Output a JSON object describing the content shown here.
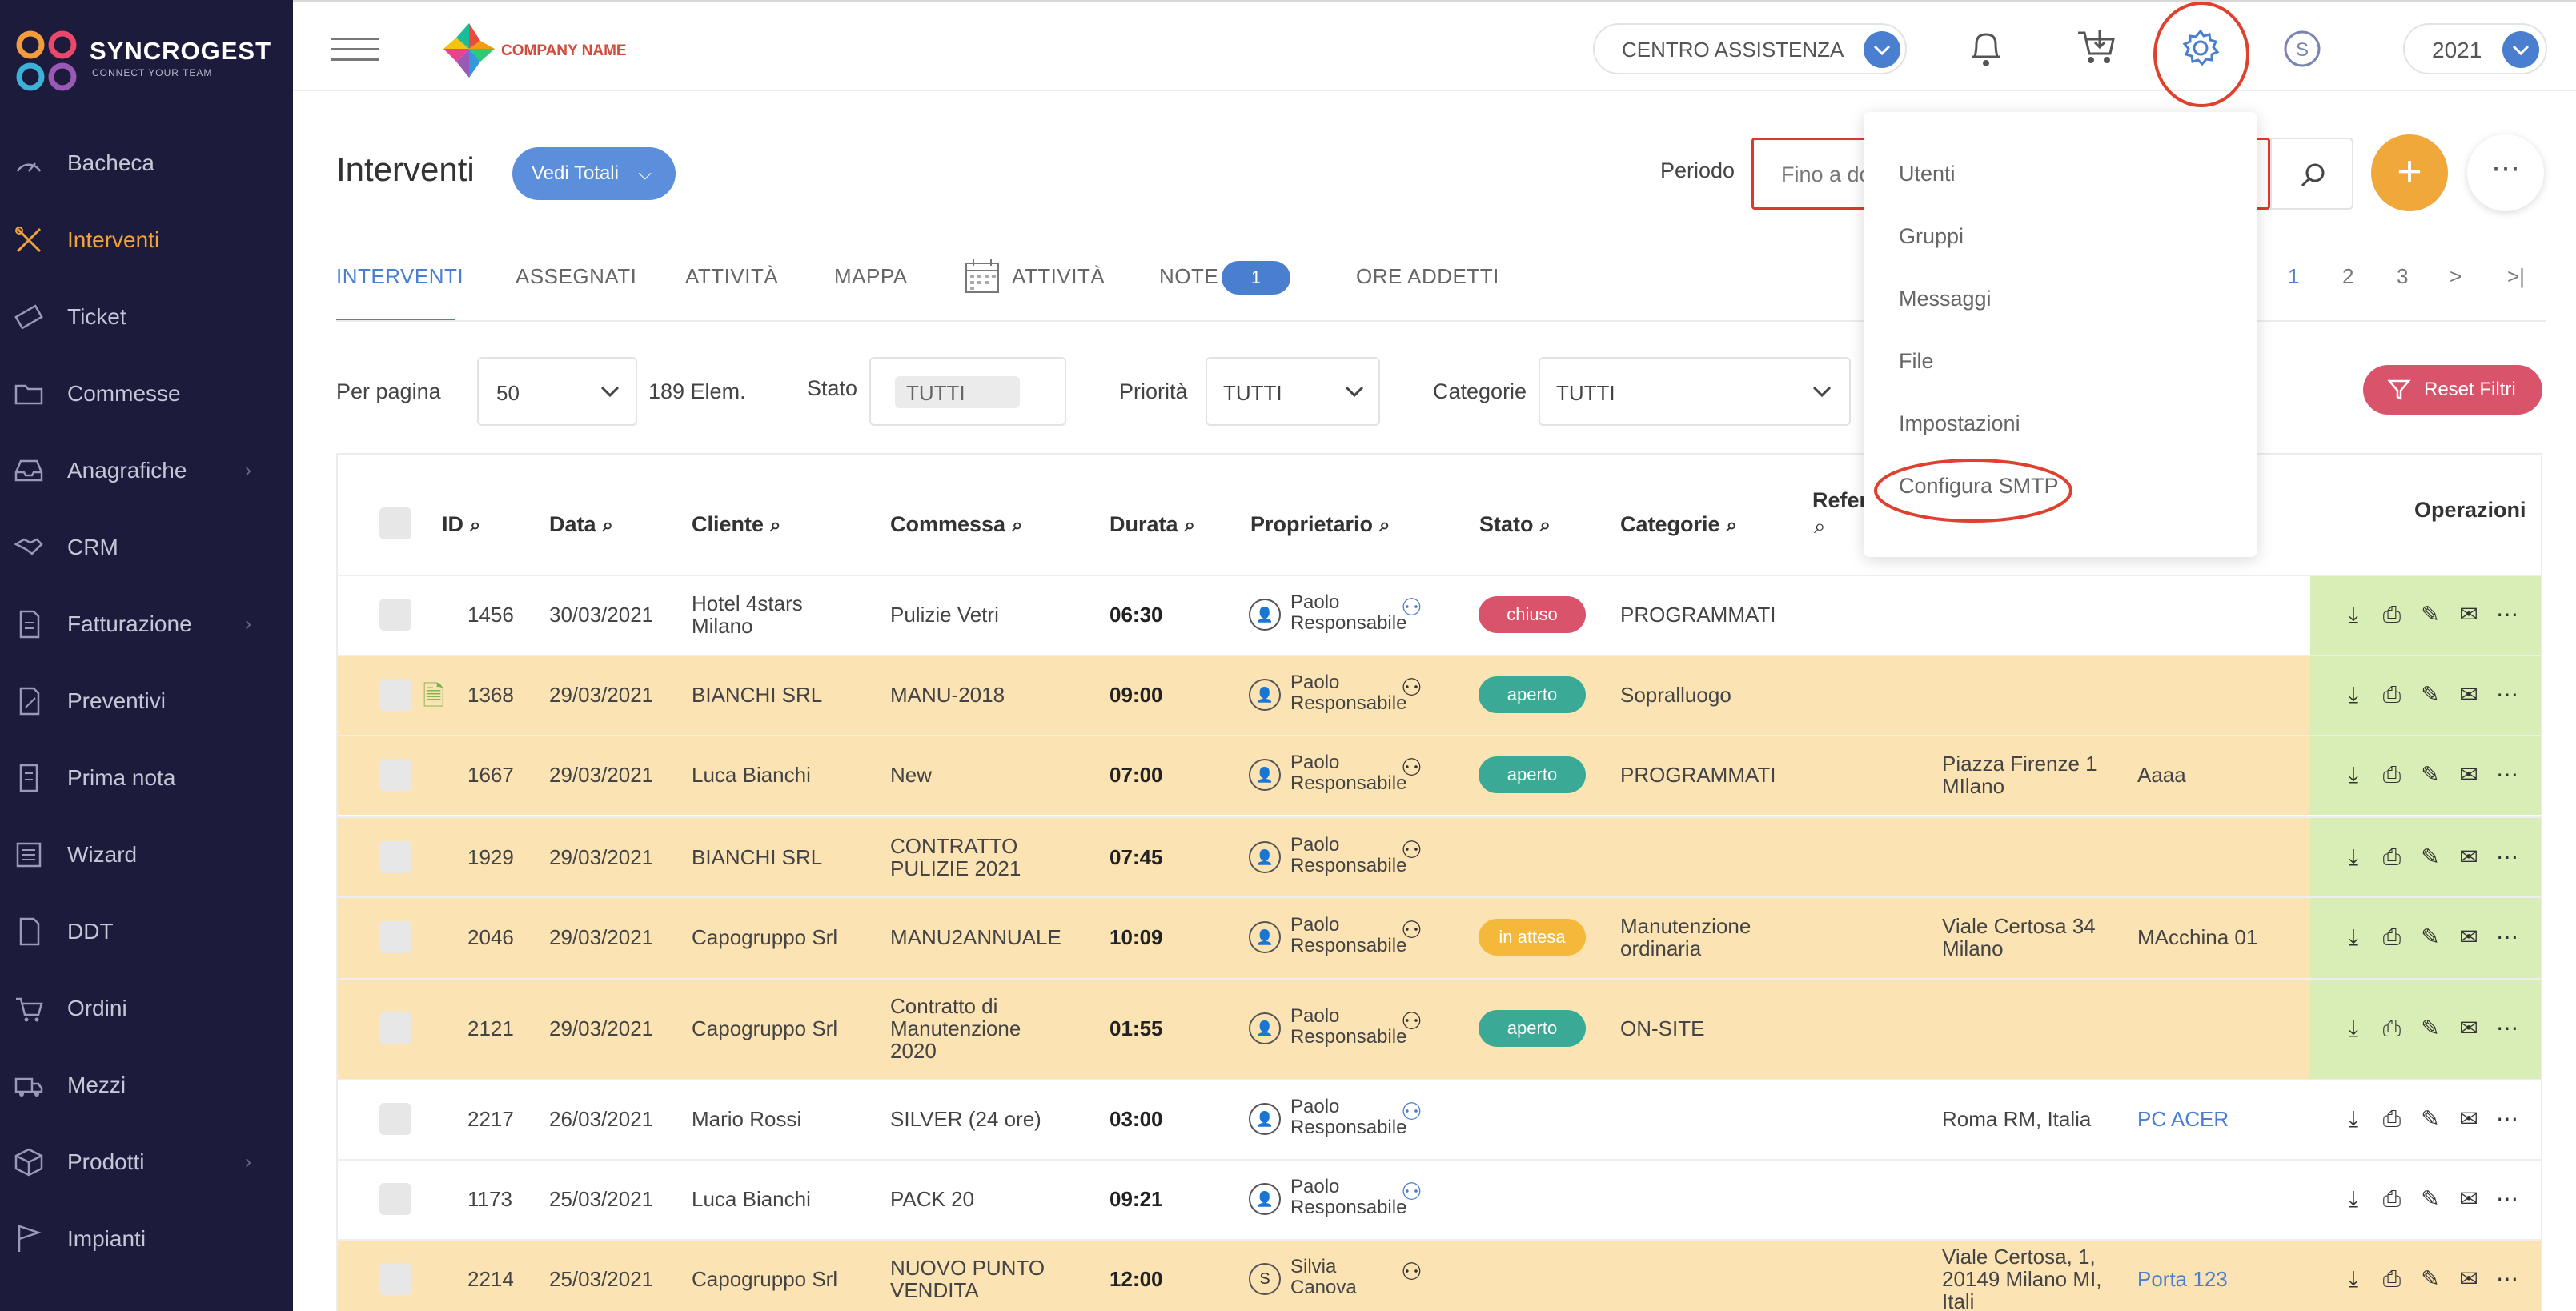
{
  "brand": {
    "name": "SYNCROGEST",
    "tagline": "CONNECT YOUR TEAM",
    "company_logo_text": "COMPANY NAME"
  },
  "header": {
    "support": "CENTRO ASSISTENZA",
    "year": "2021"
  },
  "sidebar": {
    "items": [
      {
        "label": "Bacheca",
        "icon": "dashboard-icon"
      },
      {
        "label": "Interventi",
        "icon": "tools-icon",
        "active": true
      },
      {
        "label": "Ticket",
        "icon": "ticket-icon"
      },
      {
        "label": "Commesse",
        "icon": "folder-icon"
      },
      {
        "label": "Anagrafiche",
        "icon": "inbox-icon",
        "chevron": true
      },
      {
        "label": "CRM",
        "icon": "handshake-icon"
      },
      {
        "label": "Fatturazione",
        "icon": "invoice-icon",
        "chevron": true
      },
      {
        "label": "Preventivi",
        "icon": "edit-doc-icon"
      },
      {
        "label": "Prima nota",
        "icon": "note-icon"
      },
      {
        "label": "Wizard",
        "icon": "wizard-icon"
      },
      {
        "label": "DDT",
        "icon": "ddt-icon"
      },
      {
        "label": "Ordini",
        "icon": "cart-icon"
      },
      {
        "label": "Mezzi",
        "icon": "truck-icon"
      },
      {
        "label": "Prodotti",
        "icon": "box-icon",
        "chevron": true
      },
      {
        "label": "Impianti",
        "icon": "flag-icon"
      }
    ]
  },
  "main": {
    "title": "Interventi",
    "totals_button": "Vedi Totali",
    "period_label": "Periodo",
    "period_value": "Fino a do",
    "tabs": [
      "INTERVENTI",
      "ASSEGNATI",
      "ATTIVITÀ",
      "MAPPA",
      "ATTIVITÀ",
      "NOTE",
      "ORE ADDETTI"
    ],
    "notes_count": "1",
    "pagination": [
      "1",
      "2",
      "3",
      ">",
      ">|"
    ]
  },
  "filters": {
    "per_page_label": "Per pagina",
    "per_page_value": "50",
    "count": "189 Elem.",
    "stato_label": "Stato",
    "stato_value": "TUTTI",
    "priorita_label": "Priorità",
    "priorita_value": "TUTTI",
    "categorie_label": "Categorie",
    "categorie_value": "TUTTI",
    "reset": "Reset Filtri"
  },
  "table": {
    "headers": {
      "id": "ID",
      "data": "Data",
      "cliente": "Cliente",
      "commessa": "Commessa",
      "durata": "Durata",
      "proprietario": "Proprietario",
      "stato": "Stato",
      "categorie": "Categorie",
      "refer": "Refer",
      "operazioni": "Operazioni"
    },
    "rows": [
      {
        "id": "1456",
        "data": "30/03/2021",
        "cliente": [
          "Hotel 4stars",
          "Milano"
        ],
        "commessa": [
          "Pulizie Vetri"
        ],
        "durata": "06:30",
        "owner": [
          "Paolo",
          "Responsabile"
        ],
        "owner_initial": "",
        "stato": "chiuso",
        "categorie": [
          "PROGRAMMATI"
        ],
        "addr": [],
        "ref": ""
      },
      {
        "id": "1368",
        "data": "29/03/2021",
        "cliente": [
          "BIANCHI SRL"
        ],
        "commessa": [
          "MANU-2018"
        ],
        "durata": "09:00",
        "owner": [
          "Paolo",
          "Responsabile"
        ],
        "owner_initial": "",
        "stato": "aperto",
        "categorie": [
          "Sopralluogo"
        ],
        "addr": [],
        "ref": ""
      },
      {
        "id": "1667",
        "data": "29/03/2021",
        "cliente": [
          "Luca Bianchi"
        ],
        "commessa": [
          "New"
        ],
        "durata": "07:00",
        "owner": [
          "Paolo",
          "Responsabile"
        ],
        "owner_initial": "",
        "stato": "aperto",
        "categorie": [
          "PROGRAMMATI"
        ],
        "addr": [
          "Piazza Firenze 1",
          "MIlano"
        ],
        "ref": "Aaaa"
      },
      {
        "id": "1929",
        "data": "29/03/2021",
        "cliente": [
          "BIANCHI SRL"
        ],
        "commessa": [
          "CONTRATTO",
          "PULIZIE 2021"
        ],
        "durata": "07:45",
        "owner": [
          "Paolo",
          "Responsabile"
        ],
        "owner_initial": "",
        "stato": "",
        "categorie": [],
        "addr": [],
        "ref": ""
      },
      {
        "id": "2046",
        "data": "29/03/2021",
        "cliente": [
          "Capogruppo Srl"
        ],
        "commessa": [
          "MANU2ANNUALE"
        ],
        "durata": "10:09",
        "owner": [
          "Paolo",
          "Responsabile"
        ],
        "owner_initial": "",
        "stato": "in attesa",
        "categorie": [
          "Manutenzione",
          "ordinaria"
        ],
        "addr": [
          "Viale Certosa 34",
          "Milano"
        ],
        "ref": "MAcchina 01"
      },
      {
        "id": "2121",
        "data": "29/03/2021",
        "cliente": [
          "Capogruppo Srl"
        ],
        "commessa": [
          "Contratto di",
          "Manutenzione",
          "2020"
        ],
        "durata": "01:55",
        "owner": [
          "Paolo",
          "Responsabile"
        ],
        "owner_initial": "",
        "stato": "aperto",
        "categorie": [
          "ON-SITE"
        ],
        "addr": [],
        "ref": ""
      },
      {
        "id": "2217",
        "data": "26/03/2021",
        "cliente": [
          "Mario Rossi"
        ],
        "commessa": [
          "SILVER (24 ore)"
        ],
        "durata": "03:00",
        "owner": [
          "Paolo",
          "Responsabile"
        ],
        "owner_initial": "",
        "stato": "",
        "categorie": [],
        "addr": [
          "Roma RM, Italia"
        ],
        "ref": "PC ACER"
      },
      {
        "id": "1173",
        "data": "25/03/2021",
        "cliente": [
          "Luca Bianchi"
        ],
        "commessa": [
          "PACK 20"
        ],
        "durata": "09:21",
        "owner": [
          "Paolo",
          "Responsabile"
        ],
        "owner_initial": "",
        "stato": "",
        "categorie": [],
        "addr": [],
        "ref": ""
      },
      {
        "id": "2214",
        "data": "25/03/2021",
        "cliente": [
          "Capogruppo Srl"
        ],
        "commessa": [
          "NUOVO PUNTO",
          "VENDITA"
        ],
        "durata": "12:00",
        "owner": [
          "Silvia",
          "Canova"
        ],
        "owner_initial": "S",
        "stato": "",
        "categorie": [],
        "addr": [
          "Viale Certosa, 1,",
          "20149 Milano MI,",
          "Itali"
        ],
        "ref": "Porta 123"
      }
    ]
  },
  "settings_menu": [
    "Utenti",
    "Gruppi",
    "Messaggi",
    "File",
    "Impostazioni",
    "Configura SMTP"
  ],
  "colors": {
    "accent": "#4a7ecf",
    "active_menu": "#f0a23b",
    "sidebar": "#1c1b3c",
    "row_orange": "#fce3b4",
    "ops_green": "#d9eeb7",
    "chiuso": "#d9536a",
    "aperto": "#3aaa97",
    "in_attesa": "#f4b93b",
    "annotation_red": "#e0412f"
  }
}
